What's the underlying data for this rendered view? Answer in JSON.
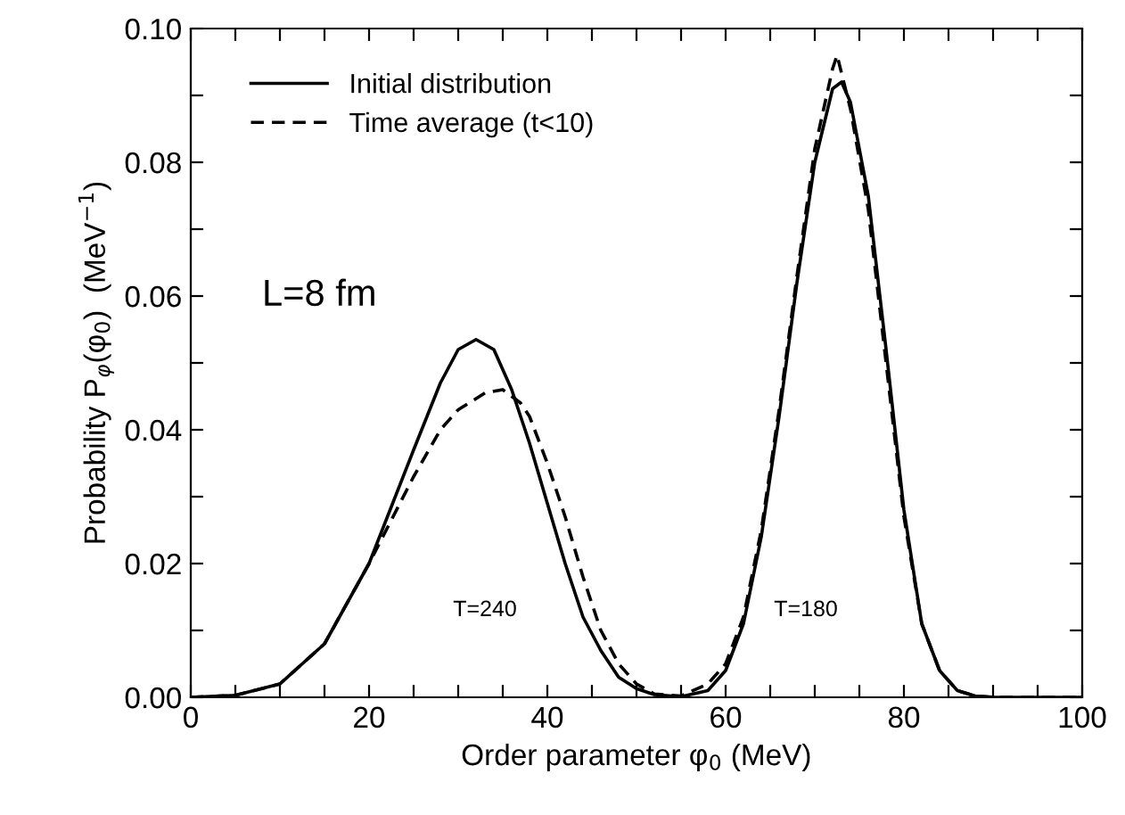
{
  "chart_data": {
    "type": "line",
    "xlabel": "Order parameter φ$_{0}$ (MeV)",
    "ylabel": "Probability P$_{φ}$(φ$_{0}$)  (MeV$^{−1}$)",
    "series": [
      {
        "name": "Initial distribution",
        "color": "#000000",
        "line_style": "solid",
        "x": [
          0,
          5,
          10,
          15,
          20,
          25,
          28,
          30,
          32,
          34,
          36,
          38,
          40,
          42,
          44,
          46,
          48,
          50,
          52,
          55,
          58,
          60,
          62,
          64,
          66,
          68,
          70,
          72,
          73,
          74,
          76,
          78,
          80,
          82,
          84,
          86,
          88,
          90,
          100
        ],
        "values": [
          0,
          0.0003,
          0.002,
          0.008,
          0.02,
          0.037,
          0.047,
          0.052,
          0.0535,
          0.052,
          0.046,
          0.038,
          0.029,
          0.02,
          0.012,
          0.007,
          0.003,
          0.0013,
          0.0004,
          0.0001,
          0.001,
          0.004,
          0.011,
          0.024,
          0.042,
          0.062,
          0.08,
          0.091,
          0.092,
          0.089,
          0.075,
          0.052,
          0.028,
          0.011,
          0.004,
          0.001,
          0.0002,
          0,
          0
        ]
      },
      {
        "name": "Time average (t<10)",
        "color": "#000000",
        "line_style": "dashed",
        "x": [
          0,
          5,
          10,
          15,
          20,
          25,
          28,
          30,
          33,
          35,
          37,
          38,
          40,
          42,
          44,
          46,
          48,
          50,
          52,
          55,
          58,
          60,
          62,
          64,
          66,
          68,
          70,
          72,
          72.5,
          74,
          76,
          78,
          80,
          82,
          84,
          86,
          88,
          90,
          100
        ],
        "values": [
          0,
          0.0003,
          0.002,
          0.008,
          0.02,
          0.033,
          0.04,
          0.043,
          0.0455,
          0.046,
          0.044,
          0.042,
          0.035,
          0.027,
          0.018,
          0.01,
          0.005,
          0.002,
          0.0005,
          0.0002,
          0.002,
          0.005,
          0.012,
          0.025,
          0.043,
          0.063,
          0.082,
          0.094,
          0.096,
          0.088,
          0.073,
          0.05,
          0.027,
          0.011,
          0.004,
          0.001,
          0.0002,
          0,
          0
        ]
      }
    ],
    "xlim": [
      0,
      100
    ],
    "xticks": [
      0,
      {
        "value": 5,
        "label": null
      },
      {
        "value": 10,
        "label": null
      },
      {
        "value": 15,
        "label": null
      },
      20,
      {
        "value": 25,
        "label": null
      },
      {
        "value": 30,
        "label": null
      },
      {
        "value": 35,
        "label": null
      },
      40,
      {
        "value": 45,
        "label": null
      },
      {
        "value": 50,
        "label": null
      },
      {
        "value": 55,
        "label": null
      },
      60,
      {
        "value": 65,
        "label": null
      },
      {
        "value": 70,
        "label": null
      },
      {
        "value": 75,
        "label": null
      },
      80,
      {
        "value": 85,
        "label": null
      },
      {
        "value": 90,
        "label": null
      },
      {
        "value": 95,
        "label": null
      },
      100
    ],
    "ylim": [
      0,
      0.1
    ],
    "yticks": [
      {
        "value": 0,
        "label": "0.00"
      },
      {
        "value": 0.01,
        "label": null
      },
      {
        "value": 0.02,
        "label": "0.02"
      },
      {
        "value": 0.03,
        "label": null
      },
      {
        "value": 0.04,
        "label": "0.04"
      },
      {
        "value": 0.05,
        "label": null
      },
      {
        "value": 0.06,
        "label": "0.06"
      },
      {
        "value": 0.07,
        "label": null
      },
      {
        "value": 0.08,
        "label": "0.08"
      },
      {
        "value": 0.09,
        "label": null
      },
      {
        "value": 0.1,
        "label": "0.10"
      }
    ],
    "annotations": [
      "L=8 fm",
      "T=240",
      "T=180"
    ],
    "legend": "top left",
    "grid": false,
    "marker": "none"
  }
}
